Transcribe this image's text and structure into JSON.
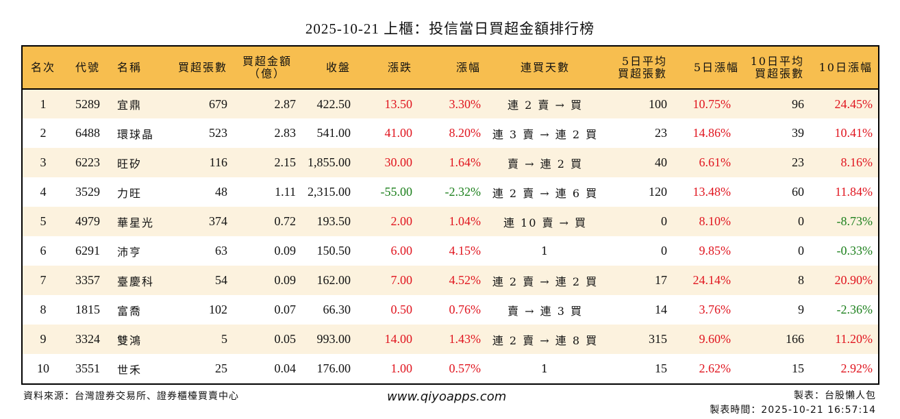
{
  "title": "2025-10-21 上櫃：投信當日買超金額排行榜",
  "colors": {
    "header_bg": "#F7BE4F",
    "row_alt_bg": "#FCF2DE",
    "up": "#E0141E",
    "down": "#1B7F1B"
  },
  "table": {
    "headers": [
      "名次",
      "代號",
      "名稱",
      "買超張數",
      "買超金額\n（億）",
      "收盤",
      "漲跌",
      "漲幅",
      "連買天數",
      "5日平均\n買超張數",
      "5日漲幅",
      "10日平均\n買超張數",
      "10日漲幅"
    ],
    "rows": [
      {
        "rank": "1",
        "code": "5289",
        "name": "宜鼎",
        "net_lots": "679",
        "net_amount": "2.87",
        "close": "422.50",
        "change": "13.50",
        "change_pct": "3.30%",
        "streak": "連 2 賣 → 買",
        "avg5_lots": "100",
        "pct5": "10.75%",
        "avg10_lots": "96",
        "pct10": "24.45%"
      },
      {
        "rank": "2",
        "code": "6488",
        "name": "環球晶",
        "net_lots": "523",
        "net_amount": "2.83",
        "close": "541.00",
        "change": "41.00",
        "change_pct": "8.20%",
        "streak": "連 3 賣 → 連 2 買",
        "avg5_lots": "23",
        "pct5": "14.86%",
        "avg10_lots": "39",
        "pct10": "10.41%"
      },
      {
        "rank": "3",
        "code": "6223",
        "name": "旺矽",
        "net_lots": "116",
        "net_amount": "2.15",
        "close": "1,855.00",
        "change": "30.00",
        "change_pct": "1.64%",
        "streak": "賣 → 連 2 買",
        "avg5_lots": "40",
        "pct5": "6.61%",
        "avg10_lots": "23",
        "pct10": "8.16%"
      },
      {
        "rank": "4",
        "code": "3529",
        "name": "力旺",
        "net_lots": "48",
        "net_amount": "1.11",
        "close": "2,315.00",
        "change": "-55.00",
        "change_pct": "-2.32%",
        "streak": "連 2 賣 → 連 6 買",
        "avg5_lots": "120",
        "pct5": "13.48%",
        "avg10_lots": "60",
        "pct10": "11.84%"
      },
      {
        "rank": "5",
        "code": "4979",
        "name": "華星光",
        "net_lots": "374",
        "net_amount": "0.72",
        "close": "193.50",
        "change": "2.00",
        "change_pct": "1.04%",
        "streak": "連 10 賣 → 買",
        "avg5_lots": "0",
        "pct5": "8.10%",
        "avg10_lots": "0",
        "pct10": "-8.73%"
      },
      {
        "rank": "6",
        "code": "6291",
        "name": "沛亨",
        "net_lots": "63",
        "net_amount": "0.09",
        "close": "150.50",
        "change": "6.00",
        "change_pct": "4.15%",
        "streak": "1",
        "avg5_lots": "0",
        "pct5": "9.85%",
        "avg10_lots": "0",
        "pct10": "-0.33%"
      },
      {
        "rank": "7",
        "code": "3357",
        "name": "臺慶科",
        "net_lots": "54",
        "net_amount": "0.09",
        "close": "162.00",
        "change": "7.00",
        "change_pct": "4.52%",
        "streak": "連 2 賣 → 連 2 買",
        "avg5_lots": "17",
        "pct5": "24.14%",
        "avg10_lots": "8",
        "pct10": "20.90%"
      },
      {
        "rank": "8",
        "code": "1815",
        "name": "富喬",
        "net_lots": "102",
        "net_amount": "0.07",
        "close": "66.30",
        "change": "0.50",
        "change_pct": "0.76%",
        "streak": "賣 → 連 3 買",
        "avg5_lots": "14",
        "pct5": "3.76%",
        "avg10_lots": "9",
        "pct10": "-2.36%"
      },
      {
        "rank": "9",
        "code": "3324",
        "name": "雙鴻",
        "net_lots": "5",
        "net_amount": "0.05",
        "close": "993.00",
        "change": "14.00",
        "change_pct": "1.43%",
        "streak": "連 2 賣 → 連 8 買",
        "avg5_lots": "315",
        "pct5": "9.60%",
        "avg10_lots": "166",
        "pct10": "11.20%"
      },
      {
        "rank": "10",
        "code": "3551",
        "name": "世禾",
        "net_lots": "25",
        "net_amount": "0.04",
        "close": "176.00",
        "change": "1.00",
        "change_pct": "0.57%",
        "streak": "1",
        "avg5_lots": "15",
        "pct5": "2.62%",
        "avg10_lots": "15",
        "pct10": "2.92%"
      }
    ]
  },
  "footer": {
    "source": "資料來源：台灣證券交易所、證券櫃檯買賣中心",
    "url": "www.qiyoapps.com",
    "author": "製表：台股懶人包",
    "timestamp": "製表時間：2025-10-21 16:57:14"
  }
}
